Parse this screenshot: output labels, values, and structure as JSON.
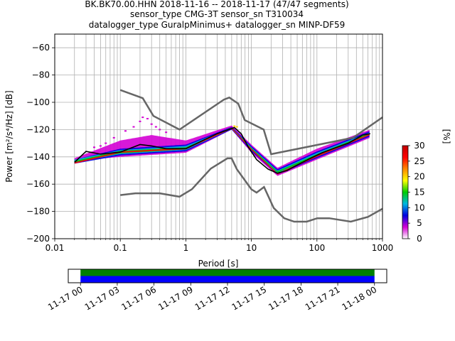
{
  "chart_data": {
    "type": "heatmap",
    "title_lines": [
      "BK.BK70.00.HHN   2018-11-16 -- 2018-11-17  (47/47 segments)",
      "sensor_type CMG-3T sensor_sn T310034",
      "datalogger_type GuralpMinimus+ datalogger_sn MINP-DF59"
    ],
    "xlabel": "Period [s]",
    "ylabel": "Power [m²/s⁴/Hz] [dB]",
    "x_scale": "log",
    "xlim": [
      0.01,
      1000
    ],
    "ylim": [
      -200,
      -50
    ],
    "grid": true,
    "x_ticks": [
      {
        "value": 0.01,
        "label": "0.01"
      },
      {
        "value": 0.1,
        "label": "0.1"
      },
      {
        "value": 1,
        "label": "1"
      },
      {
        "value": 10,
        "label": "10"
      },
      {
        "value": 100,
        "label": "100"
      },
      {
        "value": 1000,
        "label": "1000"
      }
    ],
    "y_ticks": [
      {
        "value": -60,
        "label": "−60"
      },
      {
        "value": -80,
        "label": "−80"
      },
      {
        "value": -100,
        "label": "−100"
      },
      {
        "value": -120,
        "label": "−120"
      },
      {
        "value": -140,
        "label": "−140"
      },
      {
        "value": -160,
        "label": "−160"
      },
      {
        "value": -180,
        "label": "−180"
      },
      {
        "value": -200,
        "label": "−200"
      }
    ],
    "noise_model_high": [
      [
        0.1,
        -91
      ],
      [
        0.22,
        -97
      ],
      [
        0.32,
        -110
      ],
      [
        0.8,
        -120
      ],
      [
        3.8,
        -98
      ],
      [
        4.6,
        -96.5
      ],
      [
        6.3,
        -101
      ],
      [
        7.9,
        -113
      ],
      [
        15.4,
        -120
      ],
      [
        20,
        -138
      ],
      [
        354.8,
        -126
      ],
      [
        1000,
        -111
      ]
    ],
    "noise_model_low": [
      [
        0.1,
        -168
      ],
      [
        0.17,
        -166.7
      ],
      [
        0.4,
        -166.7
      ],
      [
        0.8,
        -169.2
      ],
      [
        1.24,
        -163.7
      ],
      [
        2.4,
        -148.6
      ],
      [
        4.3,
        -141.1
      ],
      [
        5,
        -141.1
      ],
      [
        6,
        -149
      ],
      [
        10,
        -163.8
      ],
      [
        12,
        -166.2
      ],
      [
        15.6,
        -162.1
      ],
      [
        21.9,
        -177.5
      ],
      [
        31.6,
        -185
      ],
      [
        45,
        -187.5
      ],
      [
        70,
        -187.5
      ],
      [
        101,
        -185
      ],
      [
        154,
        -185
      ],
      [
        328,
        -187.5
      ],
      [
        600,
        -184
      ],
      [
        1000,
        -178
      ]
    ],
    "median_curve": [
      [
        0.02,
        -144
      ],
      [
        0.03,
        -136
      ],
      [
        0.05,
        -138
      ],
      [
        0.1,
        -136.5
      ],
      [
        0.2,
        -131
      ],
      [
        0.3,
        -132
      ],
      [
        0.5,
        -134
      ],
      [
        1,
        -134
      ],
      [
        2,
        -127
      ],
      [
        3,
        -123
      ],
      [
        4.5,
        -120
      ],
      [
        5.5,
        -118.5
      ],
      [
        7,
        -123
      ],
      [
        9,
        -133
      ],
      [
        12,
        -142
      ],
      [
        18,
        -149
      ],
      [
        25,
        -152
      ],
      [
        35,
        -150
      ],
      [
        50,
        -146
      ],
      [
        80,
        -141
      ],
      [
        120,
        -137
      ],
      [
        200,
        -133
      ],
      [
        300,
        -130
      ],
      [
        500,
        -124
      ],
      [
        650,
        -123
      ]
    ],
    "density_bands": [
      {
        "color": "#d400d4",
        "lo": [
          [
            0.02,
            -143
          ],
          [
            0.1,
            -140
          ],
          [
            1,
            -137
          ],
          [
            5,
            -120
          ],
          [
            10,
            -137
          ],
          [
            25,
            -154
          ],
          [
            100,
            -142
          ],
          [
            650,
            -126
          ]
        ],
        "hi": [
          [
            0.02,
            -141
          ],
          [
            0.1,
            -128
          ],
          [
            0.3,
            -124
          ],
          [
            1,
            -128
          ],
          [
            5,
            -117
          ],
          [
            10,
            -131
          ],
          [
            25,
            -148
          ],
          [
            100,
            -134
          ],
          [
            650,
            -120
          ]
        ]
      },
      {
        "color": "#0000e0",
        "lo": [
          [
            0.02,
            -145
          ],
          [
            0.1,
            -139
          ],
          [
            1,
            -136
          ],
          [
            5,
            -120
          ],
          [
            10,
            -136
          ],
          [
            25,
            -153
          ],
          [
            100,
            -141
          ],
          [
            650,
            -125
          ]
        ],
        "hi": [
          [
            0.02,
            -142
          ],
          [
            0.1,
            -134
          ],
          [
            1,
            -131
          ],
          [
            5,
            -118
          ],
          [
            10,
            -132
          ],
          [
            25,
            -149
          ],
          [
            100,
            -136
          ],
          [
            650,
            -121
          ]
        ]
      },
      {
        "color": "#00b8e0",
        "lo": [
          [
            0.02,
            -144
          ],
          [
            0.1,
            -138
          ],
          [
            1,
            -135
          ],
          [
            5,
            -119.5
          ],
          [
            10,
            -135
          ],
          [
            25,
            -152
          ],
          [
            100,
            -140
          ],
          [
            650,
            -124
          ]
        ],
        "hi": [
          [
            0.02,
            -142
          ],
          [
            0.1,
            -135
          ],
          [
            1,
            -132
          ],
          [
            5,
            -118.5
          ],
          [
            10,
            -133
          ],
          [
            25,
            -150
          ],
          [
            100,
            -137
          ],
          [
            650,
            -122
          ]
        ]
      },
      {
        "color": "#00cc00",
        "lo": [
          [
            0.02,
            -144
          ],
          [
            0.1,
            -137.5
          ],
          [
            1,
            -134.5
          ],
          [
            5,
            -119
          ],
          [
            10,
            -134.5
          ],
          [
            25,
            -151.5
          ],
          [
            100,
            -139.5
          ],
          [
            650,
            -123.5
          ]
        ],
        "hi": [
          [
            0.02,
            -143
          ],
          [
            0.1,
            -135.5
          ],
          [
            1,
            -133
          ],
          [
            5,
            -118.5
          ],
          [
            10,
            -133.5
          ],
          [
            25,
            -150.5
          ],
          [
            100,
            -138
          ],
          [
            650,
            -122.5
          ]
        ]
      },
      {
        "color": "#ff0000",
        "lo": [
          [
            0.02,
            -145
          ],
          [
            0.1,
            -137
          ],
          [
            1,
            -134.5
          ],
          [
            5,
            -119.5
          ],
          [
            10,
            -135
          ],
          [
            25,
            -153
          ],
          [
            100,
            -140
          ],
          [
            650,
            -124
          ]
        ],
        "hi": [
          [
            0.02,
            -144
          ],
          [
            0.1,
            -136
          ],
          [
            1,
            -133.5
          ],
          [
            5,
            -118.5
          ],
          [
            10,
            -134
          ],
          [
            25,
            -152
          ],
          [
            100,
            -139
          ],
          [
            650,
            -123
          ]
        ]
      }
    ],
    "scatter_outliers": [
      {
        "color": "#d400d4",
        "points": [
          [
            0.16,
            -118
          ],
          [
            0.2,
            -114
          ],
          [
            0.22,
            -111
          ],
          [
            0.26,
            -112
          ],
          [
            0.3,
            -116
          ],
          [
            0.35,
            -118
          ],
          [
            0.4,
            -120
          ],
          [
            0.5,
            -122
          ],
          [
            0.12,
            -121
          ],
          [
            0.08,
            -126
          ],
          [
            0.06,
            -130
          ],
          [
            0.05,
            -132
          ],
          [
            0.04,
            -133
          ]
        ]
      },
      {
        "color": "#ffd200",
        "points": [
          [
            5.5,
            -117.5
          ],
          [
            6,
            -118
          ]
        ]
      }
    ],
    "colorbar": {
      "label": "[%]",
      "range": [
        0,
        30
      ],
      "stops": [
        "#ffffff",
        "#d400d4",
        "#0000e0",
        "#00b8e0",
        "#00cc00",
        "#ffff00",
        "#ff8800",
        "#ff0000",
        "#c00000"
      ],
      "ticks": [
        {
          "value": 0,
          "label": "0"
        },
        {
          "value": 5,
          "label": "5"
        },
        {
          "value": 10,
          "label": "10"
        },
        {
          "value": 15,
          "label": "15"
        },
        {
          "value": 20,
          "label": "20"
        },
        {
          "value": 25,
          "label": "25"
        },
        {
          "value": 30,
          "label": "30"
        }
      ]
    },
    "timeline": {
      "start_hours": -1,
      "end_hours": 25,
      "coverage_start_hours": 0,
      "coverage_end_hours": 24,
      "colors": {
        "top": "#008000",
        "bottom": "#0000ff"
      },
      "ticks": [
        {
          "hours": 0,
          "label": "11-17 00"
        },
        {
          "hours": 3,
          "label": "11-17 03"
        },
        {
          "hours": 6,
          "label": "11-17 06"
        },
        {
          "hours": 9,
          "label": "11-17 09"
        },
        {
          "hours": 12,
          "label": "11-17 12"
        },
        {
          "hours": 15,
          "label": "11-17 15"
        },
        {
          "hours": 18,
          "label": "11-17 18"
        },
        {
          "hours": 21,
          "label": "11-17 21"
        },
        {
          "hours": 24,
          "label": "11-18 00"
        }
      ]
    }
  }
}
